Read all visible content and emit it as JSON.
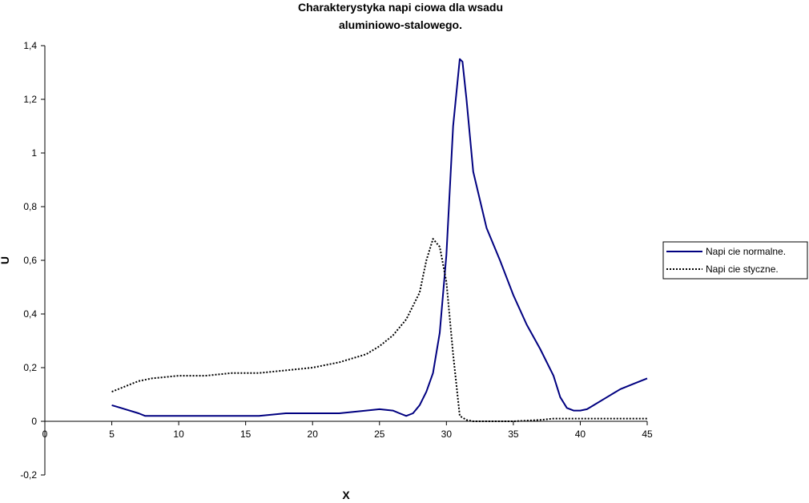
{
  "chart_data": {
    "type": "line",
    "title_lines": [
      "Charakterystyka napi  ciowa dla wsadu",
      "aluminiowo-stalowego."
    ],
    "xlabel": "X",
    "ylabel": "U",
    "xlim": [
      0,
      45
    ],
    "ylim": [
      -0.2,
      1.4
    ],
    "x_ticks": [
      "0",
      "5",
      "10",
      "15",
      "20",
      "25",
      "30",
      "35",
      "40",
      "45"
    ],
    "y_ticks": [
      "-0,2",
      "0",
      "0,2",
      "0,4",
      "0,6",
      "0,8",
      "1",
      "1,2",
      "1,4"
    ],
    "grid": false,
    "legend_position": "right",
    "series": [
      {
        "name": "Napi  cie normalne.",
        "color": "#000080",
        "style": "solid",
        "x": [
          5,
          6,
          7,
          7.5,
          8,
          10,
          12,
          14,
          16,
          18,
          20,
          22,
          24,
          25,
          26,
          26.5,
          27,
          27.5,
          28,
          28.5,
          29,
          29.5,
          30,
          30.5,
          31,
          31.2,
          31.5,
          32,
          33,
          34,
          35,
          36,
          37,
          38,
          38.5,
          39,
          39.5,
          40,
          40.5,
          41,
          42,
          43,
          44,
          45
        ],
        "y": [
          0.06,
          0.045,
          0.03,
          0.02,
          0.02,
          0.02,
          0.02,
          0.02,
          0.02,
          0.03,
          0.03,
          0.03,
          0.04,
          0.045,
          0.04,
          0.03,
          0.02,
          0.03,
          0.06,
          0.11,
          0.18,
          0.33,
          0.62,
          1.1,
          1.35,
          1.34,
          1.2,
          0.93,
          0.72,
          0.6,
          0.47,
          0.36,
          0.27,
          0.17,
          0.09,
          0.05,
          0.04,
          0.04,
          0.045,
          0.06,
          0.09,
          0.12,
          0.14,
          0.16
        ]
      },
      {
        "name": "Napi  cie styczne.",
        "color": "#000000",
        "style": "dotted",
        "x": [
          5,
          6,
          7,
          8,
          10,
          12,
          14,
          16,
          18,
          20,
          22,
          24,
          25,
          26,
          27,
          28,
          28.5,
          29,
          29.5,
          30,
          30.5,
          31,
          31.5,
          32,
          33,
          35,
          37,
          38,
          40,
          45
        ],
        "y": [
          0.11,
          0.13,
          0.15,
          0.16,
          0.17,
          0.17,
          0.18,
          0.18,
          0.19,
          0.2,
          0.22,
          0.25,
          0.28,
          0.32,
          0.38,
          0.48,
          0.6,
          0.68,
          0.65,
          0.52,
          0.25,
          0.02,
          0.005,
          0.0,
          0.0,
          0.0,
          0.005,
          0.01,
          0.01,
          0.01
        ]
      }
    ]
  }
}
